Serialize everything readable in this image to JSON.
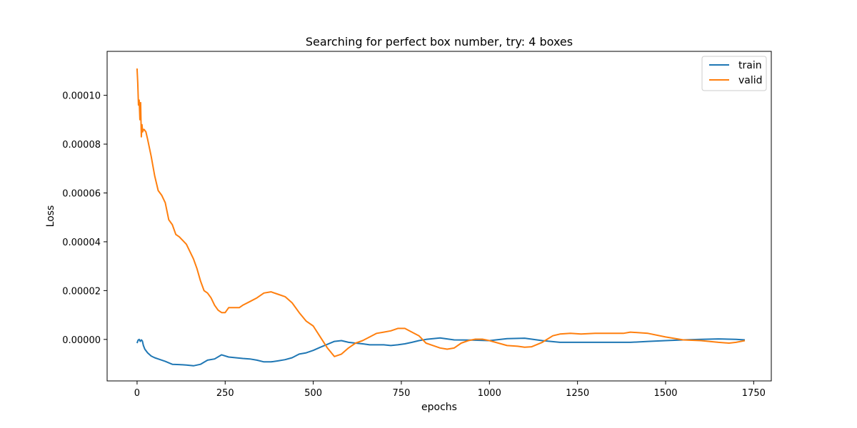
{
  "chart_data": {
    "type": "line",
    "title": "Searching for perfect box number, try: 4 boxes",
    "xlabel": "epochs",
    "ylabel": "Loss",
    "xlim": [
      -85,
      1800
    ],
    "ylim": [
      -1.7e-05,
      0.000118
    ],
    "xticks": [
      0,
      250,
      500,
      750,
      1000,
      1250,
      1500,
      1750
    ],
    "xtick_labels": [
      "0",
      "250",
      "500",
      "750",
      "1000",
      "1250",
      "1500",
      "1750"
    ],
    "yticks": [
      0,
      2e-05,
      4e-05,
      6e-05,
      8e-05,
      0.0001
    ],
    "ytick_labels": [
      "0.00000",
      "0.00002",
      "0.00004",
      "0.00006",
      "0.00008",
      "0.00010"
    ],
    "grid": false,
    "legend_position": "top-right",
    "series": [
      {
        "name": "train",
        "color": "#1f77b4",
        "x": [
          0,
          3,
          6,
          9,
          12,
          15,
          18,
          22,
          30,
          40,
          50,
          60,
          80,
          100,
          120,
          140,
          160,
          180,
          200,
          220,
          240,
          260,
          280,
          300,
          320,
          340,
          360,
          380,
          400,
          420,
          440,
          460,
          480,
          500,
          520,
          540,
          560,
          580,
          600,
          620,
          640,
          660,
          680,
          700,
          720,
          740,
          760,
          780,
          800,
          820,
          840,
          860,
          880,
          900,
          950,
          1000,
          1050,
          1100,
          1150,
          1200,
          1250,
          1300,
          1350,
          1400,
          1450,
          1500,
          1550,
          1600,
          1650,
          1700,
          1725
        ],
        "y": [
          -1.5e-06,
          -3e-07,
          0,
          -8e-07,
          -2e-07,
          -6e-07,
          -2.5e-06,
          -4e-06,
          -5.5e-06,
          -6.8e-06,
          -7.5e-06,
          -8e-06,
          -9e-06,
          -1.02e-05,
          -1.03e-05,
          -1.05e-05,
          -1.08e-05,
          -1.02e-05,
          -8.5e-06,
          -8e-06,
          -6.3e-06,
          -7.2e-06,
          -7.5e-06,
          -7.8e-06,
          -8e-06,
          -8.5e-06,
          -9.2e-06,
          -9.2e-06,
          -8.8e-06,
          -8.3e-06,
          -7.5e-06,
          -6e-06,
          -5.5e-06,
          -4.5e-06,
          -3.2e-06,
          -2e-06,
          -8e-07,
          -5e-07,
          -1.2e-06,
          -1.5e-06,
          -1.8e-06,
          -2.2e-06,
          -2.2e-06,
          -2.2e-06,
          -2.5e-06,
          -2.2e-06,
          -1.8e-06,
          -1.2e-06,
          -5e-07,
          0,
          3e-07,
          6e-07,
          2e-07,
          -2e-07,
          -3e-07,
          -5e-07,
          3e-07,
          5e-07,
          -5e-07,
          -1.2e-06,
          -1.2e-06,
          -1.2e-06,
          -1.2e-06,
          -1.2e-06,
          -8e-07,
          -5e-07,
          -2e-07,
          0,
          2e-07,
          0,
          -2e-07
        ]
      },
      {
        "name": "valid",
        "color": "#ff7f0e",
        "x": [
          0,
          2,
          4,
          6,
          8,
          10,
          12,
          14,
          16,
          18,
          20,
          25,
          30,
          40,
          50,
          60,
          70,
          80,
          90,
          100,
          110,
          120,
          140,
          150,
          160,
          170,
          180,
          190,
          200,
          210,
          220,
          230,
          240,
          250,
          260,
          270,
          280,
          290,
          300,
          320,
          340,
          360,
          380,
          400,
          420,
          440,
          460,
          480,
          500,
          520,
          540,
          560,
          580,
          600,
          620,
          640,
          660,
          680,
          700,
          720,
          740,
          760,
          780,
          800,
          820,
          840,
          860,
          880,
          900,
          920,
          940,
          960,
          980,
          1000,
          1050,
          1080,
          1100,
          1120,
          1150,
          1180,
          1200,
          1230,
          1260,
          1300,
          1350,
          1380,
          1400,
          1450,
          1500,
          1550,
          1600,
          1650,
          1680,
          1700,
          1725
        ],
        "y": [
          0.000111,
          0.000105,
          9.6e-05,
          9.8e-05,
          9e-05,
          9.7e-05,
          8.3e-05,
          8.8e-05,
          8.5e-05,
          8.6e-05,
          8.6e-05,
          8.5e-05,
          8.2e-05,
          7.5e-05,
          6.7e-05,
          6.1e-05,
          5.9e-05,
          5.6e-05,
          4.9e-05,
          4.7e-05,
          4.3e-05,
          4.2e-05,
          3.9e-05,
          3.6e-05,
          3.3e-05,
          2.9e-05,
          2.4e-05,
          2e-05,
          1.9e-05,
          1.7e-05,
          1.4e-05,
          1.2e-05,
          1.1e-05,
          1.1e-05,
          1.3e-05,
          1.3e-05,
          1.3e-05,
          1.3e-05,
          1.4e-05,
          1.55e-05,
          1.7e-05,
          1.9e-05,
          1.95e-05,
          1.85e-05,
          1.75e-05,
          1.5e-05,
          1.1e-05,
          7.5e-06,
          5.5e-06,
          1e-06,
          -3.5e-06,
          -7e-06,
          -6e-06,
          -3.5e-06,
          -1.5e-06,
          -5e-07,
          1e-06,
          2.5e-06,
          3e-06,
          3.5e-06,
          4.5e-06,
          4.5e-06,
          3e-06,
          1.5e-06,
          -1.5e-06,
          -2.5e-06,
          -3.5e-06,
          -4e-06,
          -3.5e-06,
          -1.5e-06,
          -5e-07,
          1e-07,
          1e-07,
          -5e-07,
          -2.5e-06,
          -2.8e-06,
          -3.2e-06,
          -3e-06,
          -1.2e-06,
          1.5e-06,
          2.2e-06,
          2.5e-06,
          2.2e-06,
          2.5e-06,
          2.5e-06,
          2.5e-06,
          3e-06,
          2.5e-06,
          1e-06,
          -2e-07,
          -5e-07,
          -1.2e-06,
          -1.5e-06,
          -1.2e-06,
          -5e-07
        ]
      }
    ]
  }
}
